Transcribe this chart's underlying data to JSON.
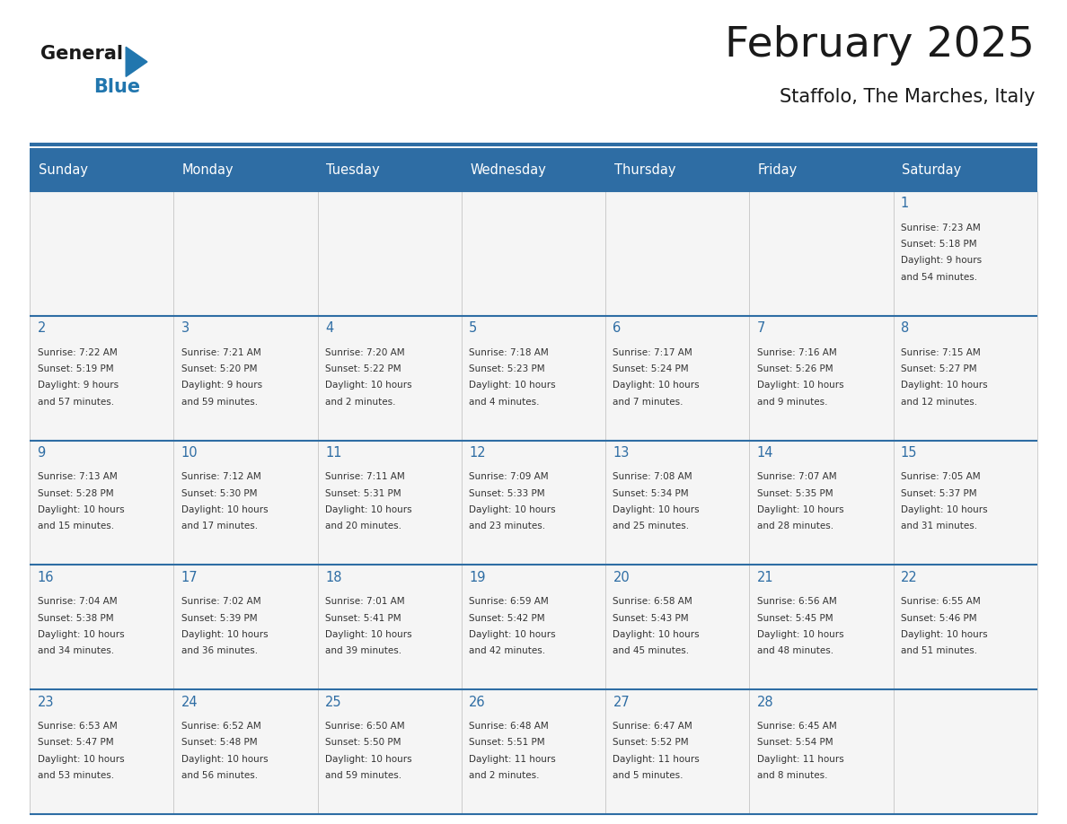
{
  "title": "February 2025",
  "subtitle": "Staffolo, The Marches, Italy",
  "days_of_week": [
    "Sunday",
    "Monday",
    "Tuesday",
    "Wednesday",
    "Thursday",
    "Friday",
    "Saturday"
  ],
  "header_bg": "#2E6DA4",
  "header_text": "#FFFFFF",
  "cell_bg": "#F5F5F5",
  "divider_color": "#2E6DA4",
  "text_color": "#333333",
  "day_num_color": "#2E6DA4",
  "title_color": "#1a1a1a",
  "logo_general_color": "#1a1a1a",
  "logo_blue_color": "#2176AE",
  "calendar_data": [
    [
      null,
      null,
      null,
      null,
      null,
      null,
      {
        "day": 1,
        "sunrise": "7:23 AM",
        "sunset": "5:18 PM",
        "daylight": "9 hours and 54 minutes."
      }
    ],
    [
      {
        "day": 2,
        "sunrise": "7:22 AM",
        "sunset": "5:19 PM",
        "daylight": "9 hours and 57 minutes."
      },
      {
        "day": 3,
        "sunrise": "7:21 AM",
        "sunset": "5:20 PM",
        "daylight": "9 hours and 59 minutes."
      },
      {
        "day": 4,
        "sunrise": "7:20 AM",
        "sunset": "5:22 PM",
        "daylight": "10 hours and 2 minutes."
      },
      {
        "day": 5,
        "sunrise": "7:18 AM",
        "sunset": "5:23 PM",
        "daylight": "10 hours and 4 minutes."
      },
      {
        "day": 6,
        "sunrise": "7:17 AM",
        "sunset": "5:24 PM",
        "daylight": "10 hours and 7 minutes."
      },
      {
        "day": 7,
        "sunrise": "7:16 AM",
        "sunset": "5:26 PM",
        "daylight": "10 hours and 9 minutes."
      },
      {
        "day": 8,
        "sunrise": "7:15 AM",
        "sunset": "5:27 PM",
        "daylight": "10 hours and 12 minutes."
      }
    ],
    [
      {
        "day": 9,
        "sunrise": "7:13 AM",
        "sunset": "5:28 PM",
        "daylight": "10 hours and 15 minutes."
      },
      {
        "day": 10,
        "sunrise": "7:12 AM",
        "sunset": "5:30 PM",
        "daylight": "10 hours and 17 minutes."
      },
      {
        "day": 11,
        "sunrise": "7:11 AM",
        "sunset": "5:31 PM",
        "daylight": "10 hours and 20 minutes."
      },
      {
        "day": 12,
        "sunrise": "7:09 AM",
        "sunset": "5:33 PM",
        "daylight": "10 hours and 23 minutes."
      },
      {
        "day": 13,
        "sunrise": "7:08 AM",
        "sunset": "5:34 PM",
        "daylight": "10 hours and 25 minutes."
      },
      {
        "day": 14,
        "sunrise": "7:07 AM",
        "sunset": "5:35 PM",
        "daylight": "10 hours and 28 minutes."
      },
      {
        "day": 15,
        "sunrise": "7:05 AM",
        "sunset": "5:37 PM",
        "daylight": "10 hours and 31 minutes."
      }
    ],
    [
      {
        "day": 16,
        "sunrise": "7:04 AM",
        "sunset": "5:38 PM",
        "daylight": "10 hours and 34 minutes."
      },
      {
        "day": 17,
        "sunrise": "7:02 AM",
        "sunset": "5:39 PM",
        "daylight": "10 hours and 36 minutes."
      },
      {
        "day": 18,
        "sunrise": "7:01 AM",
        "sunset": "5:41 PM",
        "daylight": "10 hours and 39 minutes."
      },
      {
        "day": 19,
        "sunrise": "6:59 AM",
        "sunset": "5:42 PM",
        "daylight": "10 hours and 42 minutes."
      },
      {
        "day": 20,
        "sunrise": "6:58 AM",
        "sunset": "5:43 PM",
        "daylight": "10 hours and 45 minutes."
      },
      {
        "day": 21,
        "sunrise": "6:56 AM",
        "sunset": "5:45 PM",
        "daylight": "10 hours and 48 minutes."
      },
      {
        "day": 22,
        "sunrise": "6:55 AM",
        "sunset": "5:46 PM",
        "daylight": "10 hours and 51 minutes."
      }
    ],
    [
      {
        "day": 23,
        "sunrise": "6:53 AM",
        "sunset": "5:47 PM",
        "daylight": "10 hours and 53 minutes."
      },
      {
        "day": 24,
        "sunrise": "6:52 AM",
        "sunset": "5:48 PM",
        "daylight": "10 hours and 56 minutes."
      },
      {
        "day": 25,
        "sunrise": "6:50 AM",
        "sunset": "5:50 PM",
        "daylight": "10 hours and 59 minutes."
      },
      {
        "day": 26,
        "sunrise": "6:48 AM",
        "sunset": "5:51 PM",
        "daylight": "11 hours and 2 minutes."
      },
      {
        "day": 27,
        "sunrise": "6:47 AM",
        "sunset": "5:52 PM",
        "daylight": "11 hours and 5 minutes."
      },
      {
        "day": 28,
        "sunrise": "6:45 AM",
        "sunset": "5:54 PM",
        "daylight": "11 hours and 8 minutes."
      },
      null
    ]
  ]
}
